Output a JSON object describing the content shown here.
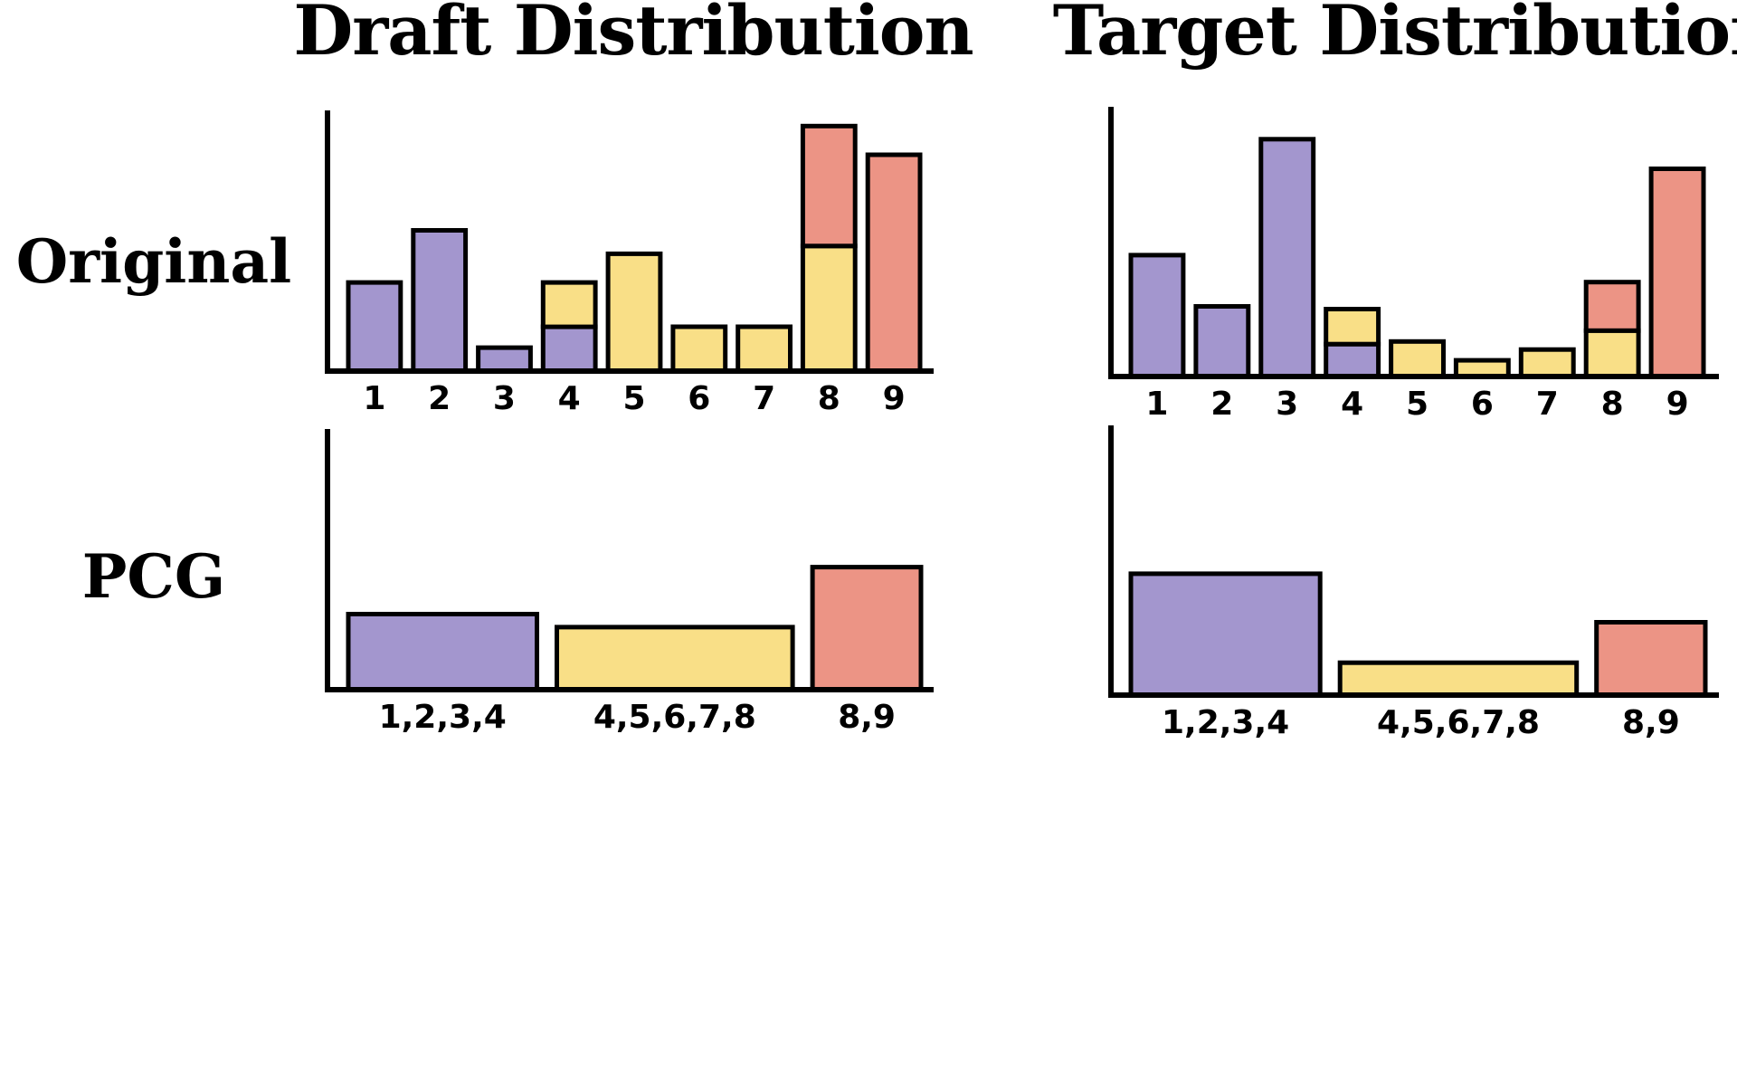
{
  "colors": {
    "purple": "#A396CE",
    "yellow": "#F9DF87",
    "red": "#EC9485"
  },
  "column_titles": [
    "Draft Distribution",
    "Target Distribution"
  ],
  "row_labels": [
    "Original",
    "PCG"
  ],
  "chart_data": [
    {
      "type": "bar",
      "title": "Draft Distribution",
      "row": "Original",
      "stacked": true,
      "categories": [
        "1",
        "2",
        "3",
        "4",
        "5",
        "6",
        "7",
        "8",
        "9"
      ],
      "series": [
        {
          "name": "purple",
          "values": [
            3.4,
            5.4,
            0.9,
            1.7,
            0,
            0,
            0,
            0,
            0
          ]
        },
        {
          "name": "yellow",
          "values": [
            0,
            0,
            0,
            1.7,
            4.5,
            1.7,
            1.7,
            4.8,
            0
          ]
        },
        {
          "name": "red",
          "values": [
            0,
            0,
            0,
            0,
            0,
            0,
            0,
            4.6,
            8.3
          ]
        }
      ],
      "ylim": [
        0,
        10
      ],
      "xlabel": "",
      "ylabel": ""
    },
    {
      "type": "bar",
      "title": "Target Distribution",
      "row": "Original",
      "stacked": true,
      "categories": [
        "1",
        "2",
        "3",
        "4",
        "5",
        "6",
        "7",
        "8",
        "9"
      ],
      "series": [
        {
          "name": "purple",
          "values": [
            4.5,
            2.6,
            8.8,
            1.2,
            0,
            0,
            0,
            0,
            0
          ]
        },
        {
          "name": "yellow",
          "values": [
            0,
            0,
            0,
            1.3,
            1.3,
            0.6,
            1.0,
            1.7,
            0
          ]
        },
        {
          "name": "red",
          "values": [
            0,
            0,
            0,
            0,
            0,
            0,
            0,
            1.8,
            7.7
          ]
        }
      ],
      "ylim": [
        0,
        10
      ],
      "xlabel": "",
      "ylabel": ""
    },
    {
      "type": "bar",
      "title": "Draft Distribution",
      "row": "PCG",
      "categories": [
        "1,2,3,4",
        "4,5,6,7,8",
        "8,9"
      ],
      "series": [
        {
          "name": "grouped",
          "values": [
            2.9,
            2.4,
            4.7
          ]
        }
      ],
      "bar_colors": [
        "purple",
        "yellow",
        "red"
      ],
      "relative_widths": [
        4,
        5,
        2.3
      ],
      "ylim": [
        0,
        10
      ],
      "xlabel": "",
      "ylabel": ""
    },
    {
      "type": "bar",
      "title": "Target Distribution",
      "row": "PCG",
      "categories": [
        "1,2,3,4",
        "4,5,6,7,8",
        "8,9"
      ],
      "series": [
        {
          "name": "grouped",
          "values": [
            4.5,
            1.2,
            2.7
          ]
        }
      ],
      "bar_colors": [
        "purple",
        "yellow",
        "red"
      ],
      "relative_widths": [
        4,
        5,
        2.3
      ],
      "ylim": [
        0,
        10
      ],
      "xlabel": "",
      "ylabel": ""
    }
  ]
}
